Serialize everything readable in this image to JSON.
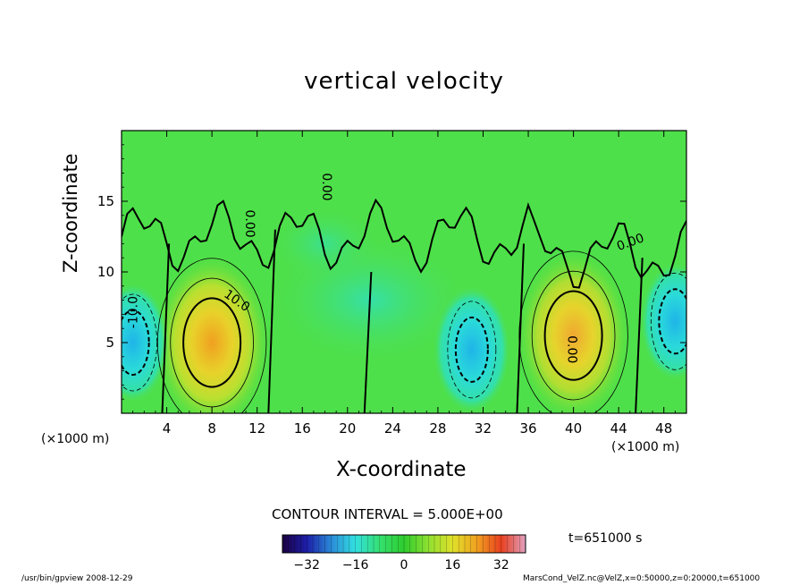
{
  "chart_data": {
    "type": "heatmap",
    "title": "vertical velocity",
    "xlabel": "X-coordinate",
    "ylabel": "Z-coordinate",
    "x_unit_label": "(×1000 m)",
    "xlim": [
      0,
      50
    ],
    "ylim": [
      0,
      20
    ],
    "x_ticks": [
      4,
      8,
      12,
      16,
      20,
      24,
      28,
      32,
      36,
      40,
      44,
      48
    ],
    "y_ticks": [
      5,
      10,
      15
    ],
    "contour_interval_text": "CONTOUR INTERVAL = 5.000E+00",
    "contour_labels": [
      "10.0",
      "0.00",
      "-10.0"
    ],
    "colorbar": {
      "range": [
        -40,
        40
      ],
      "ticks": [
        -32,
        -16,
        0,
        16,
        32
      ],
      "colormap": [
        "#1a0040",
        "#1d1ea8",
        "#2a8ad8",
        "#32e0e0",
        "#34e070",
        "#2ecc2e",
        "#8ee030",
        "#e0e02a",
        "#f0a020",
        "#e84020",
        "#e0a0c0"
      ]
    },
    "features": [
      {
        "label": "updraft",
        "x": 8,
        "z": 5,
        "value": 28
      },
      {
        "label": "updraft",
        "x": 40,
        "z": 5.5,
        "value": 25
      },
      {
        "label": "downdraft",
        "x": 31,
        "z": 4.5,
        "value": -15
      },
      {
        "label": "downdraft",
        "x": 1,
        "z": 5,
        "value": -12
      },
      {
        "label": "downdraft",
        "x": 49,
        "z": 6.5,
        "value": -11
      }
    ],
    "time_label": "t=651000 s"
  },
  "footer": {
    "left": "/usr/bin/gpview  2008-12-29",
    "right": "MarsCond_VelZ.nc@VelZ,x=0:50000,z=0:20000,t=651000"
  }
}
